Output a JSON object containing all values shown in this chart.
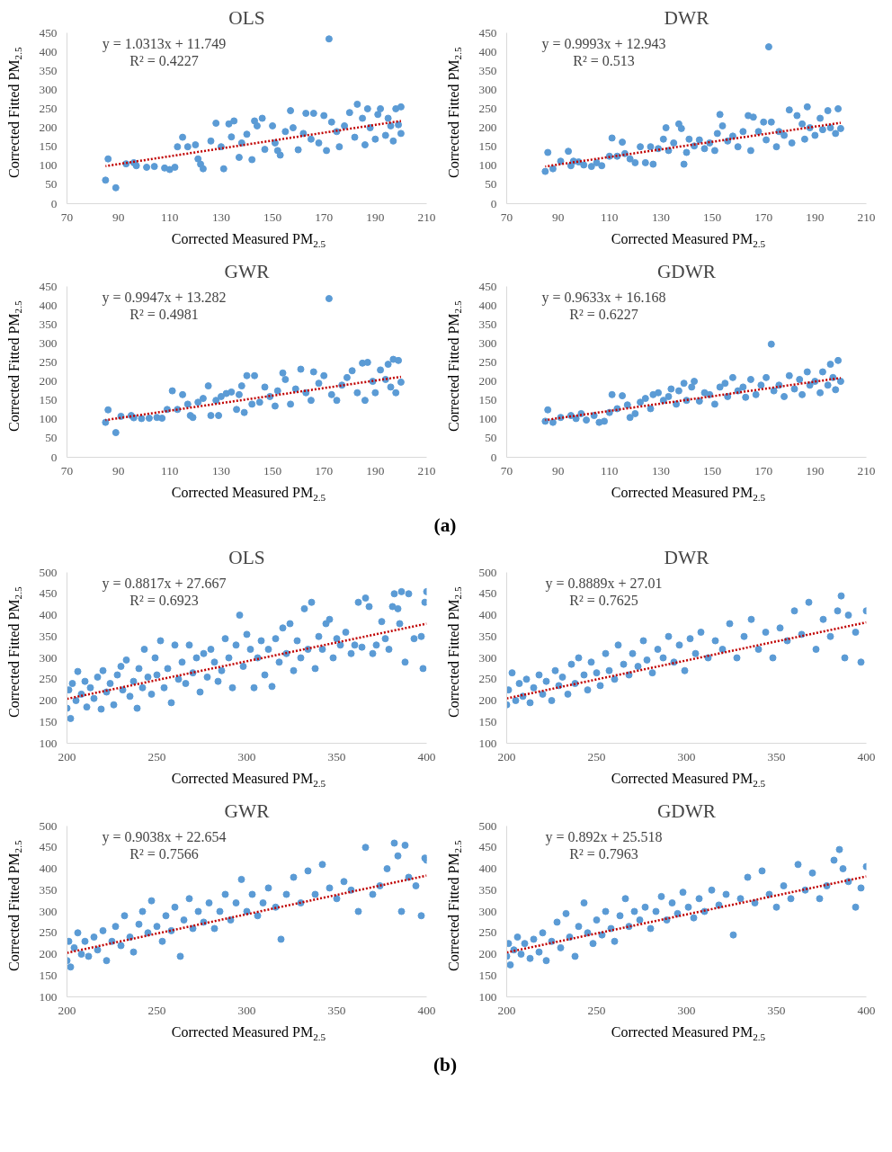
{
  "chart_data": [
    {
      "type": "scatter",
      "title": "OLS",
      "xlabel": "Corrected Measured PM$_{2.5}$",
      "ylabel": "Corrected Fitted PM$_{2.5}$",
      "annotations": [
        "y = 1.0313x + 11.749",
        "R² = 0.4227"
      ],
      "xlim": [
        70,
        210
      ],
      "ylim": [
        0,
        450
      ],
      "xticks": [
        70,
        90,
        110,
        130,
        150,
        170,
        190,
        210
      ],
      "yticks": [
        0,
        50,
        100,
        150,
        200,
        250,
        300,
        350,
        400,
        450
      ],
      "marker": "circle",
      "series": [
        {
          "type": "scatter",
          "color": "#5b9bd5",
          "x": [
            85,
            86,
            89,
            93,
            96,
            97,
            101,
            104,
            108,
            110,
            112,
            113,
            115,
            117,
            120,
            121,
            122,
            123,
            126,
            128,
            130,
            131,
            133,
            134,
            135,
            137,
            138,
            140,
            142,
            143,
            144,
            146,
            147,
            150,
            151,
            152,
            153,
            155,
            157,
            158,
            160,
            162,
            163,
            165,
            166,
            168,
            170,
            171,
            172,
            173,
            175,
            176,
            178,
            180,
            182,
            183,
            185,
            186,
            187,
            188,
            190,
            191,
            192,
            194,
            195,
            196,
            197,
            198,
            199,
            200,
            200
          ],
          "values": [
            62,
            118,
            42,
            105,
            108,
            100,
            96,
            98,
            94,
            90,
            96,
            150,
            175,
            150,
            155,
            118,
            104,
            92,
            165,
            212,
            150,
            92,
            210,
            176,
            218,
            122,
            160,
            183,
            116,
            218,
            205,
            225,
            143,
            205,
            160,
            140,
            128,
            190,
            245,
            200,
            142,
            185,
            238,
            170,
            238,
            160,
            232,
            140,
            434,
            215,
            190,
            150,
            205,
            240,
            175,
            262,
            225,
            155,
            250,
            200,
            170,
            235,
            250,
            180,
            225,
            205,
            165,
            250,
            208,
            185,
            255
          ]
        },
        {
          "type": "line",
          "color": "#c00000",
          "line_style": "dotted",
          "x": [
            85,
            200
          ],
          "marker": "none",
          "values": [
            99,
            218
          ]
        }
      ]
    },
    {
      "type": "scatter",
      "title": "DWR",
      "xlabel": "Corrected Measured PM$_{2.5}$",
      "ylabel": "Corrected Fitted PM$_{2.5}$",
      "annotations": [
        "y = 0.9993x + 12.943",
        "R² = 0.513"
      ],
      "xlim": [
        70,
        210
      ],
      "ylim": [
        0,
        450
      ],
      "xticks": [
        70,
        90,
        110,
        130,
        150,
        170,
        190,
        210
      ],
      "yticks": [
        0,
        50,
        100,
        150,
        200,
        250,
        300,
        350,
        400,
        450
      ],
      "marker": "circle",
      "series": [
        {
          "type": "scatter",
          "color": "#5b9bd5",
          "x": [
            85,
            86,
            88,
            91,
            94,
            95,
            96,
            98,
            100,
            103,
            105,
            107,
            110,
            111,
            113,
            115,
            116,
            118,
            120,
            122,
            124,
            126,
            127,
            129,
            131,
            132,
            133,
            135,
            137,
            138,
            139,
            140,
            141,
            143,
            145,
            147,
            149,
            151,
            152,
            153,
            154,
            156,
            158,
            160,
            162,
            164,
            165,
            166,
            168,
            170,
            171,
            172,
            173,
            175,
            176,
            178,
            180,
            181,
            183,
            185,
            186,
            187,
            188,
            190,
            192,
            193,
            195,
            196,
            198,
            199,
            200
          ],
          "values": [
            85,
            135,
            92,
            112,
            138,
            100,
            112,
            110,
            102,
            98,
            108,
            100,
            125,
            173,
            125,
            162,
            132,
            118,
            108,
            150,
            108,
            150,
            104,
            145,
            170,
            200,
            140,
            160,
            210,
            198,
            104,
            135,
            170,
            152,
            168,
            145,
            160,
            140,
            185,
            235,
            205,
            165,
            178,
            150,
            190,
            232,
            140,
            228,
            190,
            215,
            168,
            413,
            215,
            150,
            190,
            180,
            247,
            160,
            232,
            210,
            170,
            255,
            200,
            180,
            225,
            195,
            245,
            200,
            185,
            250,
            198
          ]
        },
        {
          "type": "line",
          "color": "#c00000",
          "line_style": "dotted",
          "x": [
            85,
            200
          ],
          "marker": "none",
          "values": [
            98,
            213
          ]
        }
      ]
    },
    {
      "type": "scatter",
      "title": "GWR",
      "xlabel": "Corrected Measured PM$_{2.5}$",
      "ylabel": "Corrected Fitted PM$_{2.5}$",
      "annotations": [
        "y = 0.9947x + 13.282",
        "R² = 0.4981"
      ],
      "xlim": [
        70,
        210
      ],
      "ylim": [
        0,
        450
      ],
      "xticks": [
        70,
        90,
        110,
        130,
        150,
        170,
        190,
        210
      ],
      "yticks": [
        0,
        50,
        100,
        150,
        200,
        250,
        300,
        350,
        400,
        450
      ],
      "marker": "circle",
      "series": [
        {
          "type": "scatter",
          "color": "#5b9bd5",
          "x": [
            85,
            86,
            89,
            91,
            95,
            96,
            99,
            102,
            105,
            107,
            109,
            111,
            113,
            115,
            117,
            118,
            119,
            121,
            123,
            125,
            126,
            128,
            129,
            130,
            132,
            134,
            136,
            137,
            138,
            139,
            140,
            142,
            143,
            145,
            147,
            149,
            151,
            152,
            154,
            155,
            157,
            159,
            161,
            163,
            165,
            166,
            168,
            170,
            172,
            173,
            175,
            177,
            179,
            181,
            183,
            185,
            186,
            187,
            189,
            190,
            192,
            194,
            195,
            196,
            197,
            198,
            199,
            200
          ],
          "values": [
            92,
            125,
            65,
            108,
            110,
            104,
            102,
            103,
            105,
            103,
            126,
            175,
            126,
            165,
            140,
            110,
            105,
            145,
            155,
            188,
            110,
            150,
            110,
            160,
            168,
            172,
            126,
            165,
            188,
            118,
            215,
            140,
            215,
            145,
            185,
            160,
            135,
            175,
            222,
            205,
            140,
            180,
            232,
            170,
            150,
            225,
            195,
            215,
            418,
            165,
            150,
            190,
            210,
            228,
            170,
            248,
            150,
            250,
            200,
            170,
            230,
            205,
            245,
            185,
            258,
            170,
            255,
            198
          ]
        },
        {
          "type": "line",
          "color": "#c00000",
          "line_style": "dotted",
          "x": [
            85,
            200
          ],
          "marker": "none",
          "values": [
            98,
            212
          ]
        }
      ]
    },
    {
      "type": "scatter",
      "title": "GDWR",
      "xlabel": "Corrected Measured PM$_{2.5}$",
      "ylabel": "Corrected Fitted PM$_{2.5}$",
      "annotations": [
        "y = 0.9633x + 16.168",
        "R² = 0.6227",
        "(a)"
      ],
      "xlim": [
        70,
        210
      ],
      "ylim": [
        0,
        450
      ],
      "xticks": [
        70,
        90,
        110,
        130,
        150,
        170,
        190,
        210
      ],
      "yticks": [
        0,
        50,
        100,
        150,
        200,
        250,
        300,
        350,
        400,
        450
      ],
      "marker": "circle",
      "series": [
        {
          "type": "scatter",
          "color": "#5b9bd5",
          "x": [
            85,
            86,
            88,
            91,
            95,
            97,
            99,
            101,
            104,
            106,
            108,
            110,
            111,
            113,
            115,
            117,
            118,
            120,
            122,
            124,
            126,
            127,
            129,
            131,
            133,
            134,
            136,
            137,
            139,
            140,
            142,
            143,
            145,
            147,
            149,
            151,
            153,
            155,
            156,
            158,
            160,
            162,
            163,
            165,
            167,
            169,
            171,
            173,
            174,
            176,
            178,
            180,
            182,
            184,
            185,
            187,
            188,
            190,
            192,
            193,
            195,
            196,
            197,
            198,
            199,
            200
          ],
          "values": [
            95,
            125,
            92,
            105,
            110,
            102,
            115,
            98,
            110,
            92,
            95,
            118,
            165,
            128,
            162,
            138,
            105,
            115,
            145,
            155,
            128,
            165,
            170,
            150,
            160,
            180,
            140,
            175,
            195,
            150,
            185,
            200,
            148,
            170,
            165,
            140,
            185,
            195,
            160,
            210,
            175,
            185,
            158,
            205,
            165,
            190,
            210,
            298,
            175,
            190,
            160,
            215,
            180,
            205,
            165,
            225,
            190,
            200,
            170,
            225,
            190,
            245,
            210,
            178,
            255,
            200
          ]
        },
        {
          "type": "line",
          "color": "#c00000",
          "line_style": "dotted",
          "x": [
            85,
            200
          ],
          "marker": "none",
          "values": [
            98,
            209
          ]
        }
      ]
    },
    {
      "type": "scatter",
      "title": "OLS",
      "xlabel": "Corrected Measured PM$_{2.5}$",
      "ylabel": "Corrected Fitted PM$_{2.5}$",
      "annotations": [
        "y = 0.8817x + 27.667",
        "R² = 0.6923"
      ],
      "xlim": [
        200,
        400
      ],
      "ylim": [
        100,
        500
      ],
      "xticks": [
        200,
        250,
        300,
        350,
        400
      ],
      "yticks": [
        100,
        150,
        200,
        250,
        300,
        350,
        400,
        450,
        500
      ],
      "marker": "circle",
      "series": [
        {
          "type": "scatter",
          "color": "#5b9bd5",
          "x": [
            200,
            201,
            202,
            203,
            205,
            206,
            208,
            210,
            211,
            213,
            215,
            217,
            219,
            220,
            222,
            224,
            226,
            228,
            230,
            231,
            233,
            235,
            237,
            239,
            240,
            242,
            243,
            245,
            247,
            249,
            250,
            252,
            254,
            256,
            258,
            260,
            262,
            264,
            266,
            268,
            270,
            272,
            274,
            276,
            278,
            280,
            282,
            284,
            286,
            288,
            290,
            292,
            294,
            296,
            298,
            300,
            302,
            304,
            306,
            308,
            310,
            312,
            314,
            316,
            318,
            320,
            322,
            324,
            326,
            328,
            330,
            332,
            334,
            336,
            338,
            340,
            342,
            344,
            346,
            348,
            350,
            352,
            355,
            358,
            360,
            362,
            364,
            366,
            368,
            370,
            372,
            375,
            377,
            379,
            381,
            382,
            384,
            385,
            386,
            388,
            390,
            393,
            397,
            398,
            399,
            400
          ],
          "values": [
            182,
            225,
            158,
            240,
            200,
            268,
            215,
            245,
            185,
            230,
            205,
            255,
            180,
            270,
            220,
            240,
            190,
            260,
            280,
            225,
            295,
            210,
            245,
            182,
            275,
            230,
            320,
            255,
            215,
            300,
            260,
            340,
            230,
            275,
            195,
            330,
            250,
            290,
            240,
            330,
            265,
            300,
            220,
            310,
            255,
            320,
            290,
            245,
            270,
            345,
            300,
            230,
            330,
            400,
            280,
            355,
            320,
            230,
            300,
            340,
            260,
            320,
            233,
            345,
            290,
            370,
            310,
            380,
            270,
            340,
            300,
            415,
            320,
            430,
            275,
            350,
            320,
            380,
            390,
            300,
            345,
            330,
            360,
            310,
            330,
            430,
            325,
            440,
            420,
            310,
            330,
            385,
            345,
            320,
            420,
            450,
            415,
            380,
            455,
            290,
            450,
            345,
            350,
            275,
            430,
            455
          ]
        },
        {
          "type": "line",
          "color": "#c00000",
          "line_style": "dotted",
          "x": [
            200,
            400
          ],
          "marker": "none",
          "values": [
            204,
            380
          ]
        }
      ]
    },
    {
      "type": "scatter",
      "title": "DWR",
      "xlabel": "Corrected Measured PM$_{2.5}$",
      "ylabel": "Corrected Fitted PM$_{2.5}$",
      "annotations": [
        "y = 0.8889x + 27.01",
        "R² = 0.7625"
      ],
      "xlim": [
        200,
        400
      ],
      "ylim": [
        100,
        500
      ],
      "xticks": [
        200,
        250,
        300,
        350,
        400
      ],
      "yticks": [
        100,
        150,
        200,
        250,
        300,
        350,
        400,
        450,
        500
      ],
      "marker": "circle",
      "series": [
        {
          "type": "scatter",
          "color": "#5b9bd5",
          "x": [
            200,
            201,
            203,
            205,
            207,
            209,
            211,
            213,
            215,
            218,
            220,
            222,
            225,
            227,
            229,
            231,
            234,
            236,
            238,
            240,
            243,
            245,
            247,
            250,
            252,
            255,
            257,
            260,
            262,
            265,
            268,
            270,
            273,
            276,
            278,
            281,
            284,
            287,
            290,
            293,
            296,
            299,
            302,
            305,
            308,
            312,
            316,
            320,
            324,
            328,
            332,
            336,
            340,
            344,
            348,
            352,
            356,
            360,
            364,
            368,
            372,
            376,
            380,
            384,
            386,
            388,
            390,
            394,
            397,
            400
          ],
          "values": [
            190,
            225,
            265,
            200,
            240,
            210,
            250,
            195,
            230,
            260,
            215,
            245,
            200,
            270,
            235,
            255,
            215,
            285,
            240,
            300,
            260,
            225,
            290,
            265,
            235,
            310,
            270,
            250,
            330,
            285,
            260,
            310,
            280,
            340,
            295,
            265,
            320,
            300,
            350,
            290,
            330,
            270,
            345,
            310,
            360,
            300,
            340,
            320,
            380,
            300,
            350,
            390,
            320,
            360,
            300,
            370,
            340,
            410,
            355,
            430,
            320,
            390,
            350,
            410,
            445,
            300,
            400,
            360,
            290,
            410
          ]
        },
        {
          "type": "line",
          "color": "#c00000",
          "line_style": "dotted",
          "x": [
            200,
            400
          ],
          "marker": "none",
          "values": [
            205,
            383
          ]
        }
      ]
    },
    {
      "type": "scatter",
      "title": "GWR",
      "xlabel": "Corrected Measured PM$_{2.5}$",
      "ylabel": "Corrected Fitted PM$_{2.5}$",
      "annotations": [
        "y = 0.9038x + 22.654",
        "R² = 0.7566"
      ],
      "xlim": [
        200,
        400
      ],
      "ylim": [
        100,
        500
      ],
      "xticks": [
        200,
        250,
        300,
        350,
        400
      ],
      "yticks": [
        100,
        150,
        200,
        250,
        300,
        350,
        400,
        450,
        500
      ],
      "marker": "circle",
      "series": [
        {
          "type": "scatter",
          "color": "#5b9bd5",
          "x": [
            200,
            201,
            202,
            204,
            206,
            208,
            210,
            212,
            215,
            217,
            220,
            222,
            225,
            227,
            230,
            232,
            235,
            237,
            240,
            242,
            245,
            247,
            250,
            253,
            255,
            258,
            260,
            263,
            265,
            268,
            270,
            273,
            276,
            279,
            282,
            285,
            288,
            291,
            294,
            297,
            300,
            303,
            306,
            309,
            312,
            316,
            319,
            322,
            326,
            330,
            334,
            338,
            342,
            346,
            350,
            354,
            358,
            362,
            366,
            370,
            374,
            378,
            382,
            384,
            386,
            388,
            390,
            394,
            397,
            399,
            400
          ],
          "values": [
            185,
            230,
            170,
            215,
            250,
            200,
            230,
            195,
            240,
            210,
            255,
            185,
            230,
            265,
            220,
            290,
            240,
            205,
            270,
            300,
            250,
            325,
            265,
            230,
            290,
            255,
            310,
            195,
            280,
            330,
            260,
            300,
            275,
            320,
            260,
            300,
            340,
            280,
            320,
            375,
            300,
            340,
            290,
            320,
            355,
            310,
            235,
            340,
            380,
            320,
            395,
            340,
            410,
            355,
            330,
            370,
            350,
            300,
            450,
            340,
            360,
            400,
            460,
            430,
            300,
            455,
            380,
            360,
            290,
            425,
            420
          ]
        },
        {
          "type": "line",
          "color": "#c00000",
          "line_style": "dotted",
          "x": [
            200,
            400
          ],
          "marker": "none",
          "values": [
            203,
            384
          ]
        }
      ]
    },
    {
      "type": "scatter",
      "title": "GDWR",
      "xlabel": "Corrected Measured PM$_{2.5}$",
      "ylabel": "Corrected Fitted PM$_{2.5}$",
      "annotations": [
        "y = 0.892x + 25.518",
        "R² = 0.7963",
        "(b)"
      ],
      "xlim": [
        200,
        400
      ],
      "ylim": [
        100,
        500
      ],
      "xticks": [
        200,
        250,
        300,
        350,
        400
      ],
      "yticks": [
        100,
        150,
        200,
        250,
        300,
        350,
        400,
        450,
        500
      ],
      "marker": "circle",
      "series": [
        {
          "type": "scatter",
          "color": "#5b9bd5",
          "x": [
            200,
            201,
            202,
            204,
            206,
            208,
            210,
            213,
            215,
            218,
            220,
            222,
            225,
            228,
            230,
            233,
            235,
            238,
            240,
            243,
            245,
            248,
            250,
            253,
            255,
            258,
            260,
            263,
            266,
            268,
            271,
            274,
            277,
            280,
            283,
            286,
            289,
            292,
            295,
            298,
            301,
            304,
            307,
            310,
            314,
            318,
            322,
            326,
            330,
            334,
            338,
            342,
            346,
            350,
            354,
            358,
            362,
            366,
            370,
            374,
            378,
            382,
            385,
            387,
            390,
            394,
            397,
            400
          ],
          "values": [
            195,
            225,
            175,
            210,
            240,
            200,
            225,
            190,
            235,
            205,
            250,
            185,
            230,
            275,
            215,
            295,
            240,
            195,
            265,
            320,
            250,
            225,
            280,
            245,
            300,
            260,
            230,
            290,
            330,
            265,
            300,
            280,
            310,
            260,
            300,
            335,
            280,
            320,
            295,
            345,
            310,
            285,
            330,
            300,
            350,
            315,
            340,
            245,
            330,
            380,
            320,
            395,
            340,
            310,
            360,
            330,
            410,
            350,
            390,
            330,
            360,
            420,
            445,
            400,
            370,
            310,
            355,
            405
          ]
        },
        {
          "type": "line",
          "color": "#c00000",
          "line_style": "dotted",
          "x": [
            200,
            400
          ],
          "marker": "none",
          "values": [
            204,
            382
          ]
        }
      ]
    }
  ]
}
